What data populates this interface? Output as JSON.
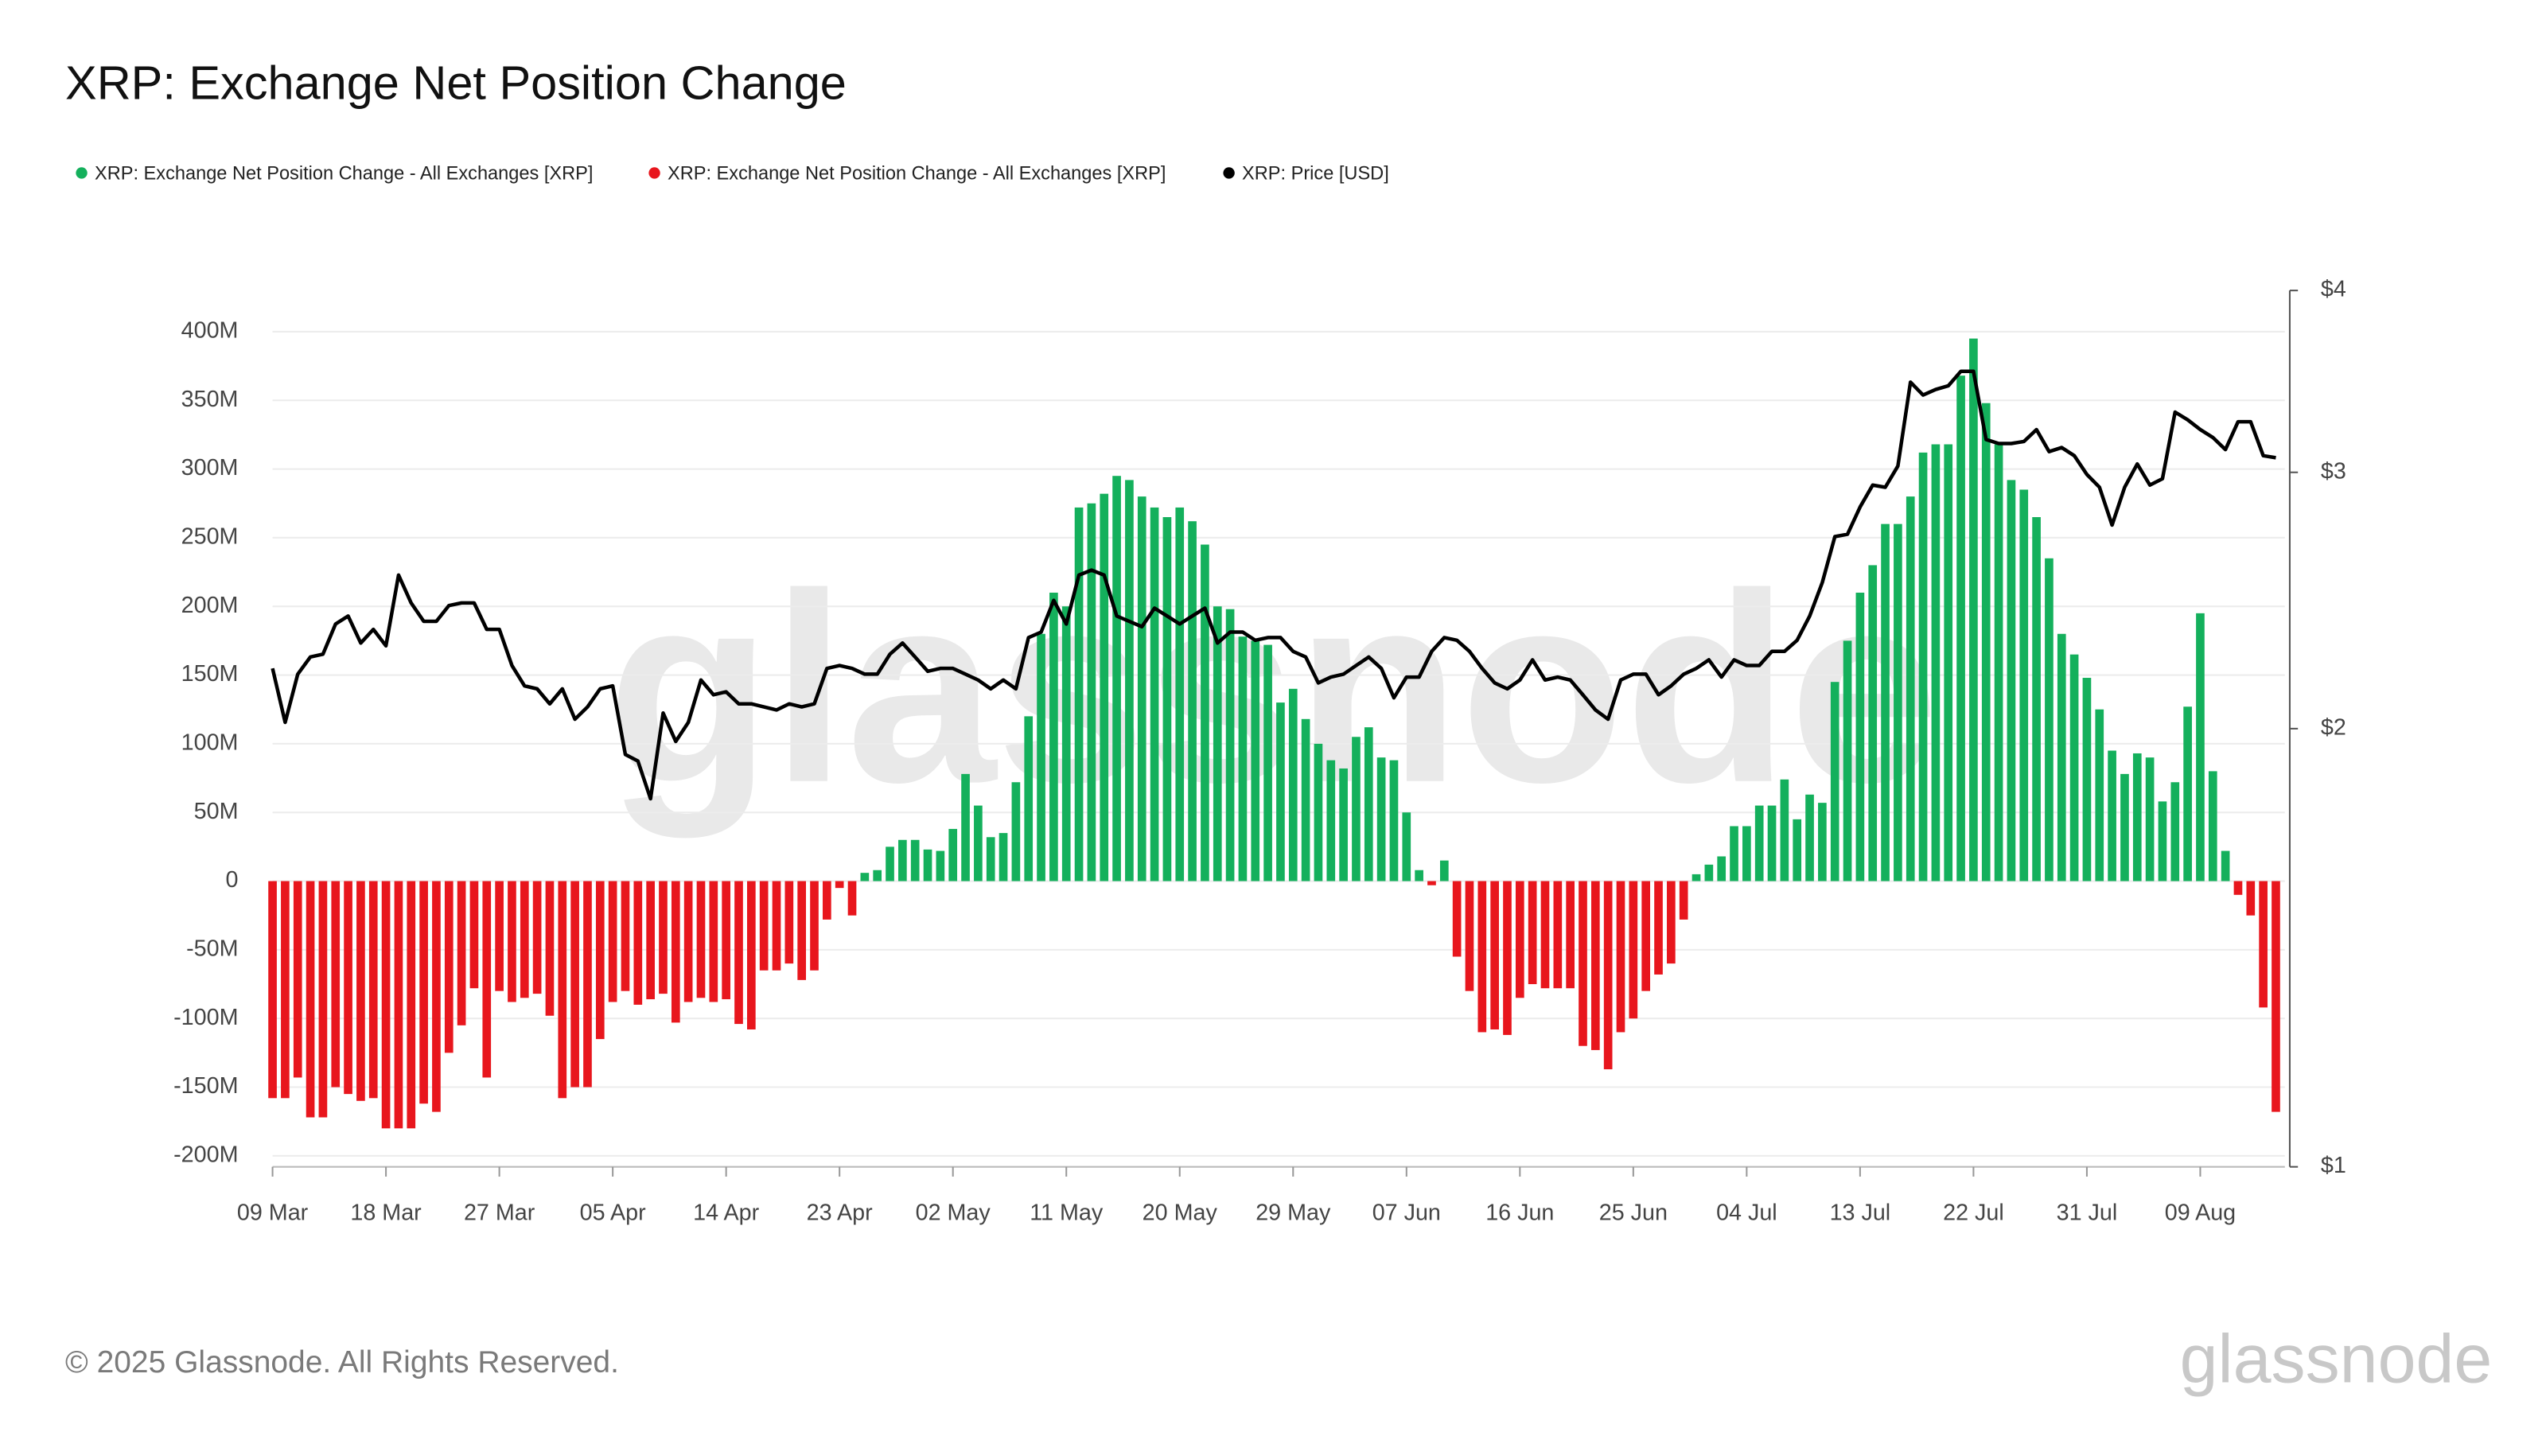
{
  "chart_data": {
    "type": "bar",
    "title": "XRP: Exchange Net Position Change",
    "watermark": "glassnode",
    "footer": "© 2025 Glassnode. All Rights Reserved.",
    "logo": "glassnode",
    "categories": [
      "09 Mar",
      null,
      null,
      null,
      null,
      null,
      null,
      null,
      null,
      "18 Mar",
      null,
      null,
      null,
      null,
      null,
      null,
      null,
      null,
      "27 Mar",
      null,
      null,
      null,
      null,
      null,
      null,
      null,
      null,
      "05 Apr",
      null,
      null,
      null,
      null,
      null,
      null,
      null,
      null,
      "14 Apr",
      null,
      null,
      null,
      null,
      null,
      null,
      null,
      null,
      "23 Apr",
      null,
      null,
      null,
      null,
      null,
      null,
      null,
      null,
      "02 May",
      null,
      null,
      null,
      null,
      null,
      null,
      null,
      null,
      "11 May",
      null,
      null,
      null,
      null,
      null,
      null,
      null,
      null,
      "20 May",
      null,
      null,
      null,
      null,
      null,
      null,
      null,
      null,
      "29 May",
      null,
      null,
      null,
      null,
      null,
      null,
      null,
      null,
      "07 Jun",
      null,
      null,
      null,
      null,
      null,
      null,
      null,
      null,
      "16 Jun",
      null,
      null,
      null,
      null,
      null,
      null,
      null,
      null,
      "25 Jun",
      null,
      null,
      null,
      null,
      null,
      null,
      null,
      null,
      "04 Jul",
      null,
      null,
      null,
      null,
      null,
      null,
      null,
      null,
      "13 Jul",
      null,
      null,
      null,
      null,
      null,
      null,
      null,
      null,
      "22 Jul",
      null,
      null,
      null,
      null,
      null,
      null,
      null,
      null,
      "31 Jul",
      null,
      null,
      null,
      null,
      null,
      null,
      null,
      null,
      "09 Aug",
      null,
      null,
      null,
      null,
      null,
      null
    ],
    "series": [
      {
        "name": "XRP: Exchange Net Position Change - All Exchanges [XRP]",
        "color": "#14b05c",
        "type": "bar",
        "values": [
          null,
          null,
          null,
          null,
          null,
          null,
          null,
          null,
          null,
          null,
          null,
          null,
          null,
          null,
          null,
          null,
          null,
          null,
          null,
          null,
          null,
          null,
          null,
          null,
          null,
          null,
          null,
          null,
          null,
          null,
          null,
          null,
          null,
          null,
          null,
          null,
          null,
          null,
          null,
          null,
          null,
          null,
          null,
          null,
          null,
          null,
          null,
          6,
          8,
          25,
          30,
          30,
          23,
          22,
          38,
          78,
          55,
          32,
          35,
          72,
          120,
          180,
          210,
          200,
          272,
          275,
          282,
          295,
          292,
          280,
          272,
          265,
          272,
          262,
          245,
          200,
          198,
          178,
          175,
          172,
          130,
          140,
          118,
          100,
          88,
          82,
          105,
          112,
          90,
          88,
          50,
          8,
          null,
          15,
          null,
          null,
          null,
          null,
          null,
          null,
          null,
          null,
          null,
          null,
          null,
          null,
          null,
          null,
          null,
          null,
          null,
          null,
          null,
          5,
          12,
          18,
          40,
          40,
          55,
          55,
          74,
          45,
          63,
          57,
          145,
          175,
          210,
          230,
          260,
          260,
          280,
          312,
          318,
          318,
          368,
          395,
          348,
          318,
          292,
          285,
          265,
          235,
          180,
          165,
          148,
          125,
          95,
          78,
          93,
          90,
          58,
          72,
          127,
          195,
          80,
          22,
          null,
          null,
          null,
          null
        ]
      },
      {
        "name": "XRP: Exchange Net Position Change - All Exchanges [XRP]",
        "color": "#e8161d",
        "type": "bar",
        "values": [
          -158,
          -158,
          -143,
          -172,
          -172,
          -150,
          -155,
          -160,
          -158,
          -180,
          -180,
          -180,
          -162,
          -168,
          -125,
          -105,
          -78,
          -143,
          -80,
          -88,
          -85,
          -82,
          -98,
          -158,
          -150,
          -150,
          -115,
          -88,
          -80,
          -90,
          -86,
          -82,
          -103,
          -88,
          -85,
          -88,
          -86,
          -104,
          -108,
          -65,
          -65,
          -60,
          -72,
          -65,
          -28,
          -5,
          -25,
          null,
          null,
          null,
          null,
          null,
          null,
          null,
          null,
          null,
          null,
          null,
          null,
          null,
          null,
          null,
          null,
          null,
          null,
          null,
          null,
          null,
          null,
          null,
          null,
          null,
          null,
          null,
          null,
          null,
          null,
          null,
          null,
          null,
          null,
          null,
          null,
          null,
          null,
          null,
          null,
          null,
          null,
          null,
          null,
          null,
          -3,
          null,
          -55,
          -80,
          -110,
          -108,
          -112,
          -85,
          -75,
          -78,
          -78,
          -78,
          -120,
          -123,
          -137,
          -110,
          -100,
          -80,
          -68,
          -60,
          -28,
          null,
          null,
          null,
          null,
          null,
          null,
          null,
          null,
          null,
          null,
          null,
          null,
          null,
          null,
          null,
          null,
          null,
          null,
          null,
          null,
          null,
          null,
          null,
          null,
          null,
          null,
          null,
          null,
          null,
          null,
          null,
          null,
          null,
          null,
          null,
          null,
          null,
          null,
          null,
          null,
          null,
          null,
          null,
          -10,
          -25,
          -92,
          -168
        ]
      },
      {
        "name": "XRP: Price [USD]",
        "color": "#000000",
        "type": "line",
        "axis": "y2",
        "values": [
          2.2,
          2.02,
          2.18,
          2.24,
          2.25,
          2.36,
          2.39,
          2.29,
          2.34,
          2.28,
          2.55,
          2.44,
          2.37,
          2.37,
          2.43,
          2.44,
          2.44,
          2.34,
          2.34,
          2.21,
          2.14,
          2.13,
          2.08,
          2.13,
          2.03,
          2.07,
          2.13,
          2.14,
          1.92,
          1.9,
          1.79,
          2.05,
          1.96,
          2.02,
          2.16,
          2.11,
          2.12,
          2.08,
          2.08,
          2.07,
          2.06,
          2.08,
          2.07,
          2.08,
          2.2,
          2.21,
          2.2,
          2.18,
          2.18,
          2.25,
          2.29,
          2.24,
          2.19,
          2.2,
          2.2,
          2.18,
          2.16,
          2.13,
          2.16,
          2.13,
          2.31,
          2.33,
          2.45,
          2.36,
          2.55,
          2.57,
          2.55,
          2.39,
          2.37,
          2.35,
          2.42,
          2.39,
          2.36,
          2.39,
          2.42,
          2.29,
          2.33,
          2.33,
          2.3,
          2.31,
          2.31,
          2.26,
          2.24,
          2.15,
          2.17,
          2.18,
          2.21,
          2.24,
          2.2,
          2.1,
          2.17,
          2.17,
          2.26,
          2.31,
          2.3,
          2.26,
          2.2,
          2.15,
          2.13,
          2.16,
          2.23,
          2.16,
          2.17,
          2.16,
          2.11,
          2.06,
          2.03,
          2.16,
          2.18,
          2.18,
          2.11,
          2.14,
          2.18,
          2.2,
          2.23,
          2.17,
          2.23,
          2.21,
          2.21,
          2.26,
          2.26,
          2.3,
          2.39,
          2.52,
          2.71,
          2.72,
          2.84,
          2.94,
          2.93,
          3.03,
          3.46,
          3.39,
          3.42,
          3.44,
          3.52,
          3.52,
          3.16,
          3.14,
          3.14,
          3.15,
          3.21,
          3.1,
          3.12,
          3.08,
          2.99,
          2.93,
          2.76,
          2.93,
          3.04,
          2.94,
          2.97,
          3.3,
          3.26,
          3.21,
          3.17,
          3.11,
          3.25,
          3.25,
          3.08,
          3.07
        ]
      }
    ],
    "ylim": [
      -208,
      430
    ],
    "yticks": [
      {
        "value": -200,
        "label": "-200M"
      },
      {
        "value": -150,
        "label": "-150M"
      },
      {
        "value": -100,
        "label": "-100M"
      },
      {
        "value": -50,
        "label": "-50M"
      },
      0,
      {
        "value": 50,
        "label": "50M"
      },
      {
        "value": 100,
        "label": "100M"
      },
      {
        "value": 150,
        "label": "150M"
      },
      {
        "value": 200,
        "label": "200M"
      },
      {
        "value": 250,
        "label": "250M"
      },
      {
        "value": 300,
        "label": "300M"
      },
      {
        "value": 350,
        "label": "350M"
      },
      {
        "value": 400,
        "label": "400M"
      }
    ],
    "y2lim": [
      1,
      4
    ],
    "y2log": true,
    "y2ticks": [
      {
        "value": 1,
        "label": "$1"
      },
      {
        "value": 2,
        "label": "$2"
      },
      {
        "value": 3,
        "label": "$3"
      },
      {
        "value": 4,
        "label": "$4"
      }
    ],
    "grid": true,
    "legend": "top-left"
  }
}
